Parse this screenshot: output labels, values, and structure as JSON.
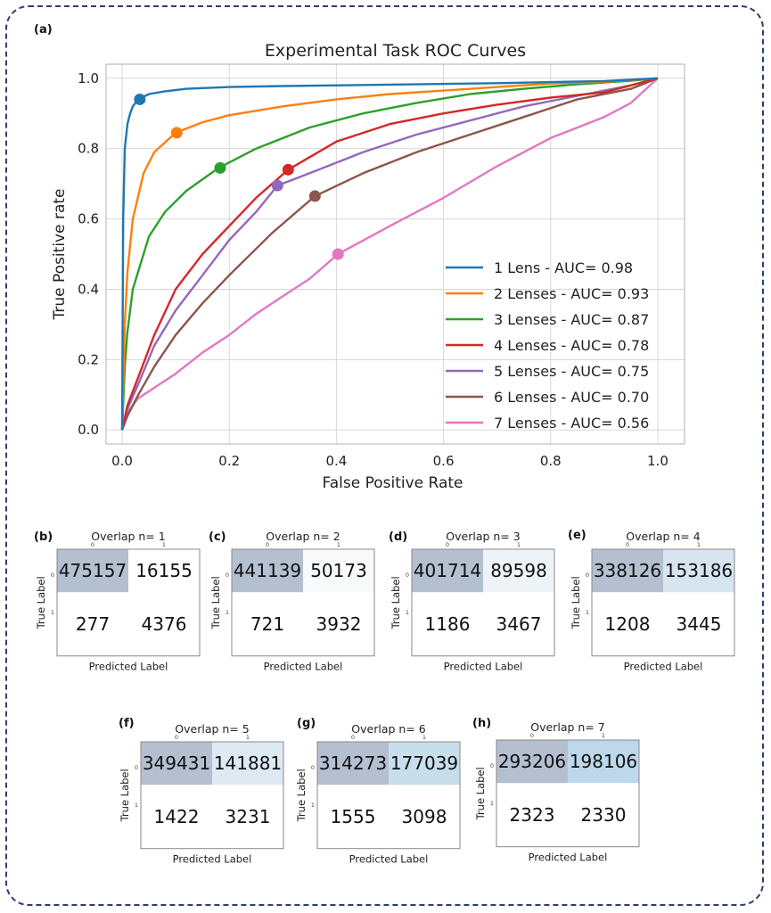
{
  "roc_panel_label": "(a)",
  "chart_data": [
    {
      "type": "line",
      "title": "Experimental Task ROC Curves",
      "xlabel": "False Positive Rate",
      "ylabel": "True Positive rate",
      "xlim": [
        -0.03,
        1.05
      ],
      "ylim": [
        -0.04,
        1.04
      ],
      "xticks": [
        "0.0",
        "0.2",
        "0.4",
        "0.6",
        "0.8",
        "1.0"
      ],
      "yticks": [
        "0.0",
        "0.2",
        "0.4",
        "0.6",
        "0.8",
        "1.0"
      ],
      "grid": true,
      "legend_position": "bottom-right",
      "series": [
        {
          "name": "1 Lens -  AUC= 0.98",
          "color": "#1f77b4",
          "x": [
            0,
            0.002,
            0.005,
            0.01,
            0.015,
            0.02,
            0.03,
            0.05,
            0.08,
            0.12,
            0.2,
            0.3,
            0.5,
            0.7,
            0.9,
            1.0
          ],
          "y": [
            0,
            0.6,
            0.8,
            0.87,
            0.9,
            0.92,
            0.94,
            0.955,
            0.963,
            0.97,
            0.975,
            0.978,
            0.982,
            0.986,
            0.992,
            1.0
          ],
          "marker": [
            0.033,
            0.94
          ]
        },
        {
          "name": "2 Lenses -  AUC= 0.93",
          "color": "#ff7f0e",
          "x": [
            0,
            0.005,
            0.01,
            0.02,
            0.04,
            0.06,
            0.1,
            0.15,
            0.2,
            0.3,
            0.4,
            0.5,
            0.6,
            0.7,
            0.8,
            0.9,
            1.0
          ],
          "y": [
            0,
            0.3,
            0.45,
            0.6,
            0.73,
            0.79,
            0.845,
            0.875,
            0.895,
            0.92,
            0.94,
            0.955,
            0.965,
            0.975,
            0.985,
            0.99,
            1.0
          ],
          "marker": [
            0.102,
            0.845
          ]
        },
        {
          "name": "3 Lenses -  AUC= 0.87",
          "color": "#2ca02c",
          "x": [
            0,
            0.005,
            0.01,
            0.02,
            0.05,
            0.08,
            0.12,
            0.18,
            0.25,
            0.35,
            0.45,
            0.55,
            0.65,
            0.75,
            0.85,
            0.95,
            1.0
          ],
          "y": [
            0,
            0.18,
            0.28,
            0.4,
            0.55,
            0.62,
            0.68,
            0.745,
            0.8,
            0.86,
            0.9,
            0.93,
            0.955,
            0.97,
            0.983,
            0.993,
            1.0
          ],
          "marker": [
            0.183,
            0.745
          ]
        },
        {
          "name": "4 Lenses -  AUC= 0.78",
          "color": "#d62728",
          "x": [
            0,
            0.01,
            0.03,
            0.06,
            0.1,
            0.15,
            0.2,
            0.25,
            0.31,
            0.4,
            0.5,
            0.6,
            0.7,
            0.8,
            0.9,
            1.0
          ],
          "y": [
            0,
            0.07,
            0.15,
            0.27,
            0.4,
            0.5,
            0.58,
            0.66,
            0.74,
            0.82,
            0.87,
            0.9,
            0.925,
            0.945,
            0.96,
            1.0
          ],
          "marker": [
            0.31,
            0.74
          ]
        },
        {
          "name": "5 Lenses -  AUC= 0.75",
          "color": "#9467bd",
          "x": [
            0,
            0.01,
            0.03,
            0.06,
            0.1,
            0.15,
            0.2,
            0.25,
            0.29,
            0.35,
            0.45,
            0.55,
            0.65,
            0.75,
            0.85,
            0.95,
            1.0
          ],
          "y": [
            0,
            0.06,
            0.13,
            0.24,
            0.34,
            0.44,
            0.54,
            0.62,
            0.695,
            0.73,
            0.79,
            0.84,
            0.88,
            0.92,
            0.95,
            0.98,
            1.0
          ],
          "marker": [
            0.29,
            0.695
          ]
        },
        {
          "name": "6 Lenses -  AUC= 0.70",
          "color": "#8c564b",
          "x": [
            0,
            0.01,
            0.03,
            0.06,
            0.1,
            0.15,
            0.2,
            0.28,
            0.36,
            0.45,
            0.55,
            0.65,
            0.75,
            0.85,
            0.95,
            1.0
          ],
          "y": [
            0,
            0.04,
            0.1,
            0.18,
            0.27,
            0.36,
            0.44,
            0.56,
            0.665,
            0.73,
            0.79,
            0.84,
            0.89,
            0.94,
            0.97,
            1.0
          ],
          "marker": [
            0.36,
            0.665
          ]
        },
        {
          "name": "7 Lenses -  AUC= 0.56",
          "color": "#e377c2",
          "x": [
            0,
            0.01,
            0.03,
            0.06,
            0.1,
            0.15,
            0.2,
            0.25,
            0.3,
            0.35,
            0.403,
            0.5,
            0.6,
            0.7,
            0.8,
            0.9,
            0.95,
            1.0
          ],
          "y": [
            0,
            0.05,
            0.09,
            0.12,
            0.16,
            0.22,
            0.27,
            0.33,
            0.38,
            0.43,
            0.5,
            0.58,
            0.66,
            0.75,
            0.83,
            0.89,
            0.93,
            1.0
          ],
          "marker": [
            0.403,
            0.5
          ]
        }
      ]
    },
    {
      "type": "heatmap",
      "panels": [
        {
          "label": "(b)",
          "title": "Overlap n= 1",
          "values": [
            [
              475157,
              16155
            ],
            [
              277,
              4376
            ]
          ],
          "fills": [
            "#b4bfd0",
            "#ffffff",
            "#ffffff",
            "#ffffff"
          ]
        },
        {
          "label": "(c)",
          "title": "Overlap n= 2",
          "values": [
            [
              441139,
              50173
            ],
            [
              721,
              3932
            ]
          ],
          "fills": [
            "#b4bfd0",
            "#f7f9fb",
            "#ffffff",
            "#ffffff"
          ]
        },
        {
          "label": "(d)",
          "title": "Overlap n= 3",
          "values": [
            [
              401714,
              89598
            ],
            [
              1186,
              3467
            ]
          ],
          "fills": [
            "#b4bfd0",
            "#eef3f8",
            "#ffffff",
            "#ffffff"
          ]
        },
        {
          "label": "(e)",
          "title": "Overlap n= 4",
          "values": [
            [
              338126,
              153186
            ],
            [
              1208,
              3445
            ]
          ],
          "fills": [
            "#b4bfd0",
            "#d6e5f0",
            "#ffffff",
            "#ffffff"
          ]
        },
        {
          "label": "(f)",
          "title": "Overlap n= 5",
          "values": [
            [
              349431,
              141881
            ],
            [
              1422,
              3231
            ]
          ],
          "fills": [
            "#b4bfd0",
            "#dde9f3",
            "#ffffff",
            "#ffffff"
          ]
        },
        {
          "label": "(g)",
          "title": "Overlap n= 6",
          "values": [
            [
              314273,
              177039
            ],
            [
              1555,
              3098
            ]
          ],
          "fills": [
            "#b4bfd0",
            "#c7deed",
            "#ffffff",
            "#ffffff"
          ]
        },
        {
          "label": "(h)",
          "title": "Overlap n= 7",
          "values": [
            [
              293206,
              198106
            ],
            [
              2323,
              2330
            ]
          ],
          "fills": [
            "#b4bfd0",
            "#bcd8ea",
            "#ffffff",
            "#ffffff"
          ]
        }
      ],
      "xlabel": "Predicted Label",
      "ylabel": "True Label",
      "tick_labels": [
        "0",
        "1"
      ]
    }
  ]
}
